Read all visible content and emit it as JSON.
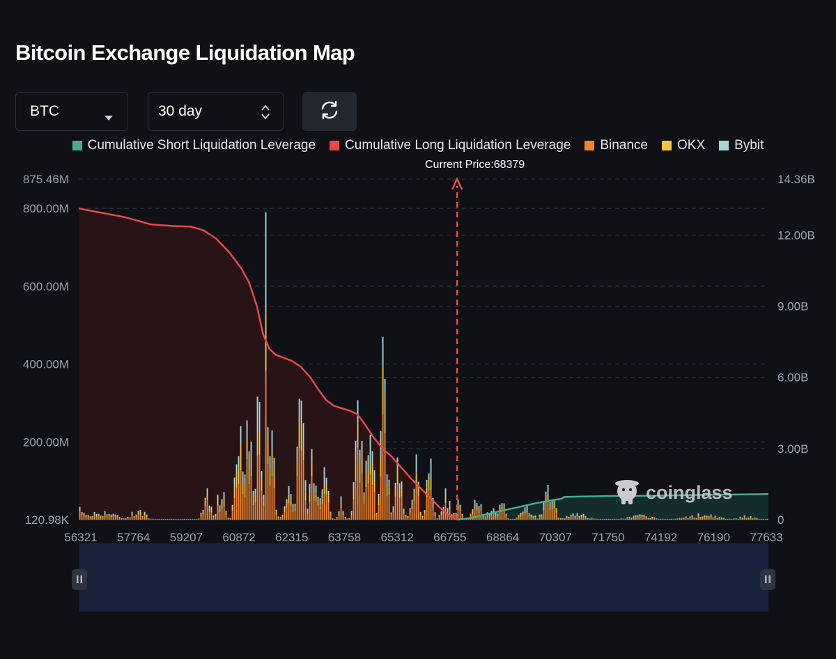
{
  "title": "Bitcoin Exchange Liquidation Map",
  "controls": {
    "symbol": "BTC",
    "range": "30 day"
  },
  "legend": [
    {
      "label": "Cumulative Short Liquidation Leverage",
      "color": "#4aaa8f"
    },
    {
      "label": "Cumulative Long Liquidation Leverage",
      "color": "#e84848"
    },
    {
      "label": "Binance",
      "color": "#f0862a"
    },
    {
      "label": "OKX",
      "color": "#f5c342"
    },
    {
      "label": "Bybit",
      "color": "#a4d4d8"
    }
  ],
  "current_price_label": "Current Price:68379",
  "watermark": "coinglass",
  "chart_data": {
    "type": "bar",
    "x_ticks": [
      "56321",
      "57764",
      "59207",
      "60872",
      "62315",
      "63758",
      "65312",
      "66755",
      "68864",
      "70307",
      "71750",
      "74192",
      "76190",
      "77633"
    ],
    "xlim": [
      56321,
      78300
    ],
    "current_price": 68379,
    "y_left_ticks": [
      "875.46M",
      "800.00M",
      "600.00M",
      "400.00M",
      "200.00M",
      "120.98K"
    ],
    "y_left_max_M": 875.46,
    "y_right_ticks": [
      "14.36B",
      "12.00B",
      "9.00B",
      "6.00B",
      "3.00B",
      "0"
    ],
    "y_right_max_B": 14.36,
    "stack_order": [
      "Binance",
      "OKX",
      "Bybit"
    ],
    "colors": {
      "Binance": "#f0862a",
      "OKX": "#f5c342",
      "Bybit": "#a4d4d8",
      "long": "#e84848",
      "short": "#4aaa8f",
      "current": "#e84848"
    },
    "clusters": [
      {
        "price": 56321,
        "width": 600,
        "peak_M": 30
      },
      {
        "price": 57100,
        "width": 700,
        "peak_M": 25
      },
      {
        "price": 58200,
        "width": 500,
        "peak_M": 25
      },
      {
        "price": 60400,
        "width": 200,
        "peak_M": 110
      },
      {
        "price": 60850,
        "width": 240,
        "peak_M": 85
      },
      {
        "price": 61400,
        "width": 180,
        "peak_M": 330
      },
      {
        "price": 61700,
        "width": 220,
        "peak_M": 320
      },
      {
        "price": 62050,
        "width": 160,
        "peak_M": 420
      },
      {
        "price": 62300,
        "width": 80,
        "peak_M": 790
      },
      {
        "price": 62500,
        "width": 130,
        "peak_M": 350
      },
      {
        "price": 63000,
        "width": 220,
        "peak_M": 120
      },
      {
        "price": 63400,
        "width": 220,
        "peak_M": 300
      },
      {
        "price": 63800,
        "width": 200,
        "peak_M": 230
      },
      {
        "price": 64150,
        "width": 200,
        "peak_M": 230
      },
      {
        "price": 64700,
        "width": 140,
        "peak_M": 70
      },
      {
        "price": 65250,
        "width": 220,
        "peak_M": 330
      },
      {
        "price": 65600,
        "width": 200,
        "peak_M": 320
      },
      {
        "price": 66050,
        "width": 180,
        "peak_M": 440
      },
      {
        "price": 66500,
        "width": 220,
        "peak_M": 180
      },
      {
        "price": 67050,
        "width": 200,
        "peak_M": 150
      },
      {
        "price": 67500,
        "width": 200,
        "peak_M": 150
      },
      {
        "price": 68000,
        "width": 220,
        "peak_M": 100
      },
      {
        "price": 68400,
        "width": 180,
        "peak_M": 60
      },
      {
        "price": 69000,
        "width": 200,
        "peak_M": 110
      },
      {
        "price": 69500,
        "width": 260,
        "peak_M": 40
      },
      {
        "price": 69800,
        "width": 200,
        "peak_M": 85
      },
      {
        "price": 70600,
        "width": 400,
        "peak_M": 30
      },
      {
        "price": 71300,
        "width": 300,
        "peak_M": 90
      },
      {
        "price": 72200,
        "width": 600,
        "peak_M": 20
      },
      {
        "price": 74200,
        "width": 700,
        "peak_M": 12
      },
      {
        "price": 76200,
        "width": 900,
        "peak_M": 15
      },
      {
        "price": 77600,
        "width": 500,
        "peak_M": 10
      }
    ],
    "long_cumulative_B": {
      "x": [
        56321,
        57000,
        57800,
        58600,
        59300,
        59900,
        60300,
        60700,
        61100,
        61500,
        61750,
        62000,
        62200,
        62400,
        62600,
        62800,
        63100,
        63400,
        63700,
        63950,
        64200,
        64450,
        64700,
        64950,
        65200,
        65400,
        65700,
        66000,
        66300,
        66600,
        66900,
        67200,
        67500,
        67800,
        68100,
        68379
      ],
      "y": [
        13.12,
        12.95,
        12.75,
        12.45,
        12.38,
        12.35,
        12.2,
        11.85,
        11.3,
        10.6,
        10.0,
        9.0,
        7.8,
        7.2,
        6.95,
        6.85,
        6.7,
        6.45,
        6.0,
        5.5,
        5.05,
        4.8,
        4.7,
        4.6,
        4.45,
        4.1,
        3.5,
        3.0,
        2.65,
        2.2,
        1.75,
        1.35,
        0.95,
        0.55,
        0.2,
        0.0
      ]
    },
    "short_cumulative_B": {
      "x": [
        68379,
        68800,
        69300,
        69800,
        70300,
        70900,
        71400,
        71700,
        71800,
        72500,
        73500,
        74500,
        75500,
        76500,
        77300,
        78300
      ],
      "y": [
        0.0,
        0.07,
        0.22,
        0.38,
        0.52,
        0.7,
        0.82,
        0.88,
        0.96,
        0.98,
        1.0,
        1.01,
        1.03,
        1.05,
        1.06,
        1.08
      ]
    }
  }
}
